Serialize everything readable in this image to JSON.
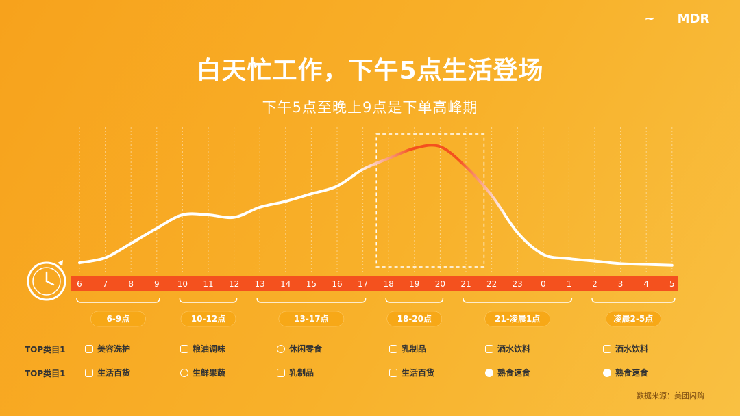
{
  "header": {
    "logo_left_mark": "~",
    "logo_right_mark": "MDR",
    "title": "白天忙工作，下午5点生活登场",
    "subtitle": "下午5点至晚上9点是下单高峰期"
  },
  "chart_data": {
    "type": "line",
    "x": [
      "6",
      "7",
      "8",
      "9",
      "10",
      "11",
      "12",
      "13",
      "14",
      "15",
      "16",
      "17",
      "18",
      "19",
      "20",
      "21",
      "22",
      "23",
      "0",
      "1",
      "2",
      "3",
      "4",
      "5"
    ],
    "series": [
      {
        "values": [
          4,
          10,
          27,
          45,
          61,
          61,
          58,
          70,
          77,
          86,
          95,
          115,
          128,
          140,
          142,
          118,
          84,
          40,
          14,
          9,
          6,
          3,
          2,
          1
        ]
      }
    ],
    "highlight": {
      "from": "18",
      "to": "20"
    },
    "groups": [
      {
        "label": "6-9点",
        "from": "6",
        "to": "9"
      },
      {
        "label": "10-12点",
        "from": "10",
        "to": "12"
      },
      {
        "label": "13-17点",
        "from": "13",
        "to": "17"
      },
      {
        "label": "18-20点",
        "from": "18",
        "to": "20"
      },
      {
        "label": "21-凌晨1点",
        "from": "21",
        "to": "1"
      },
      {
        "label": "凌晨2-5点",
        "from": "2",
        "to": "5"
      }
    ]
  },
  "rows": {
    "label_1": "TOP类目1",
    "label_2": "TOP类目1",
    "top1": [
      "美容洗护",
      "粮油调味",
      "休闲零食",
      "乳制品",
      "酒水饮料",
      "酒水饮料"
    ],
    "top2": [
      "生活百货",
      "生鲜果蔬",
      "乳制品",
      "生活百货",
      "熟食速食",
      "熟食速食"
    ]
  },
  "icons": [
    "clock-icon",
    "bottle-icon",
    "bag-icon",
    "oil-icon",
    "vegetable-icon",
    "candy-icon",
    "milk-icon",
    "drink-icon",
    "bowl-icon"
  ],
  "colors": {
    "bar": "#f4511e",
    "line": "#ffffff",
    "peak": "#f4511e",
    "pill": "#f7a817",
    "background": "#f8b12a"
  },
  "footer": {
    "source": "数据来源：美团闪购"
  }
}
